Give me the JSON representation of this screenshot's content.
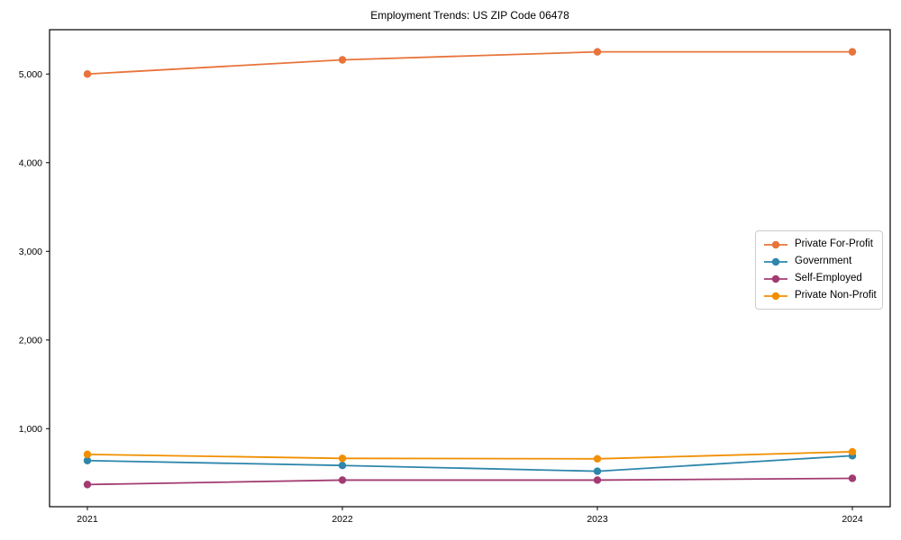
{
  "figure": {
    "title": "Employment Trends: US ZIP Code 06478",
    "background_color": "#ffffff",
    "frame_color": "#000000",
    "legend_border_color": "#cccccc"
  },
  "chart_data": {
    "type": "line",
    "title": "Employment Trends: US ZIP Code 06478",
    "xlabel": "",
    "ylabel": "",
    "categories": [
      "2021",
      "2022",
      "2023",
      "2024"
    ],
    "series": [
      {
        "name": "Private For-Profit",
        "color": "#E8743B",
        "values": [
          5000,
          5160,
          5250,
          5250
        ]
      },
      {
        "name": "Government",
        "color": "#2E86AB",
        "values": [
          640,
          585,
          520,
          695
        ]
      },
      {
        "name": "Self-Employed",
        "color": "#A23B72",
        "values": [
          370,
          420,
          420,
          440
        ]
      },
      {
        "name": "Private Non-Profit",
        "color": "#F18F01",
        "values": [
          710,
          665,
          660,
          740
        ]
      }
    ],
    "ylim": [
      120,
      5500
    ],
    "yticks": [
      {
        "value": 1000,
        "label": "1,000"
      },
      {
        "value": 2000,
        "label": "2,000"
      },
      {
        "value": 3000,
        "label": "3,000"
      },
      {
        "value": 4000,
        "label": "4,000"
      },
      {
        "value": 5000,
        "label": "5,000"
      }
    ],
    "grid": false,
    "marker": "circle",
    "legend_position": "center right"
  }
}
